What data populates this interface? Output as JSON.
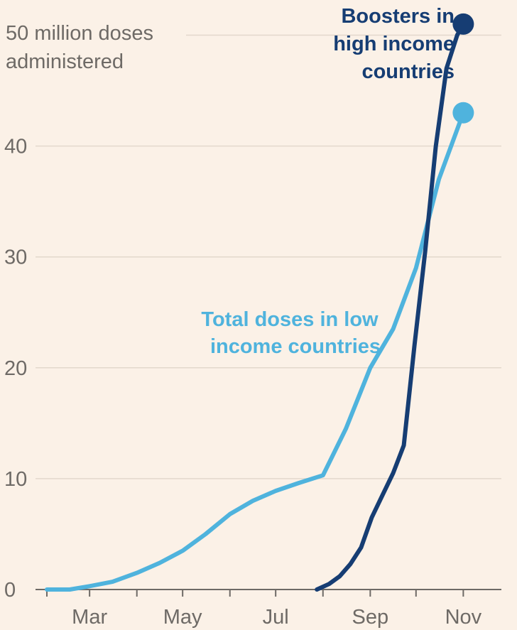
{
  "chart_data": {
    "type": "line",
    "ylabel_lines": [
      "50 million doses",
      "administered"
    ],
    "y_ticks": [
      0,
      10,
      20,
      30,
      40
    ],
    "ylim": [
      0,
      52
    ],
    "x_tick_labels": [
      "Mar",
      "May",
      "Jul",
      "Sep",
      "Nov"
    ],
    "x_tick_positions": [
      "2021-03-01",
      "2021-05-01",
      "2021-07-01",
      "2021-09-01",
      "2021-11-01"
    ],
    "xlim": [
      "2021-02-01",
      "2021-11-12"
    ],
    "grid": true,
    "colors": {
      "background": "#fbf1e7",
      "grid": "#e3d8cc",
      "axis": "#6e6a66",
      "low_income": "#4fb3dd",
      "high_income": "#163d73"
    },
    "series": [
      {
        "name": "Total doses in low income countries",
        "label_lines": [
          "Total doses in low",
          "income countries"
        ],
        "color": "#4fb3dd",
        "dates": [
          "2021-02-01",
          "2021-02-16",
          "2021-03-01",
          "2021-03-16",
          "2021-04-01",
          "2021-04-16",
          "2021-05-01",
          "2021-05-16",
          "2021-06-01",
          "2021-06-16",
          "2021-07-01",
          "2021-07-16",
          "2021-08-01",
          "2021-08-16",
          "2021-09-01",
          "2021-09-16",
          "2021-10-01",
          "2021-10-16",
          "2021-11-01"
        ],
        "values": [
          0,
          0,
          0.3,
          0.7,
          1.5,
          2.4,
          3.5,
          5.0,
          6.8,
          8.0,
          8.9,
          9.6,
          10.3,
          14.5,
          20.0,
          23.5,
          29.0,
          37.0,
          43.0
        ]
      },
      {
        "name": "Boosters in high income countries",
        "label_lines": [
          "Boosters in",
          "high income",
          "countries"
        ],
        "color": "#163d73",
        "dates": [
          "2021-07-28",
          "2021-08-05",
          "2021-08-12",
          "2021-08-19",
          "2021-08-26",
          "2021-09-02",
          "2021-09-09",
          "2021-09-16",
          "2021-09-23",
          "2021-09-30",
          "2021-10-07",
          "2021-10-14",
          "2021-10-21",
          "2021-10-28",
          "2021-11-01"
        ],
        "values": [
          0,
          0.5,
          1.2,
          2.3,
          3.8,
          6.5,
          8.5,
          10.5,
          13.0,
          22.0,
          30.5,
          40.0,
          47.0,
          50.0,
          51.0
        ]
      }
    ]
  }
}
